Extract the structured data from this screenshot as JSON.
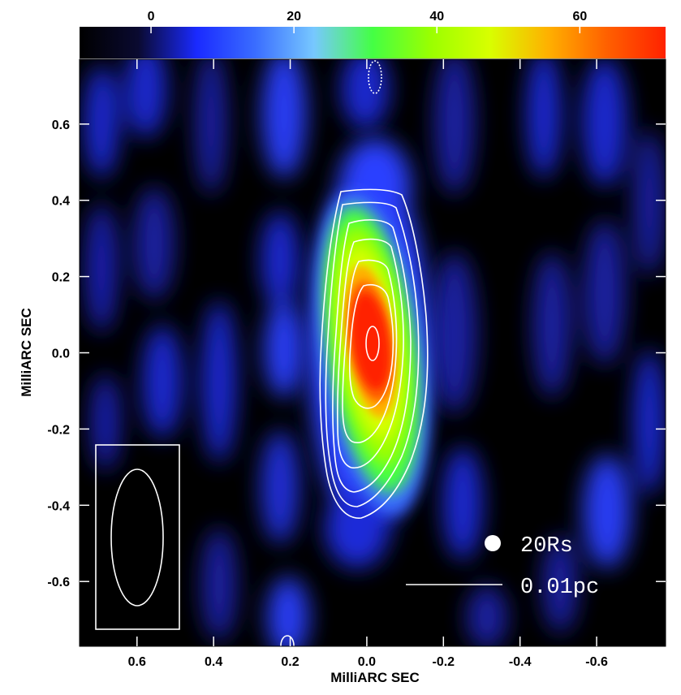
{
  "colorbar": {
    "ticks": [
      {
        "value": 0,
        "label": "0"
      },
      {
        "value": 20,
        "label": "20"
      },
      {
        "value": 40,
        "label": "40"
      },
      {
        "value": 60,
        "label": "60"
      }
    ],
    "range": [
      -10,
      72
    ],
    "stops": [
      "#000000",
      "#0a0a30",
      "#1a2aff",
      "#3a6dff",
      "#77c8ff",
      "#44ff44",
      "#9bff00",
      "#d8ff00",
      "#ffb000",
      "#ff6000",
      "#ff2200"
    ]
  },
  "axes": {
    "xlabel": "MilliARC SEC",
    "ylabel": "MilliARC SEC",
    "xlim": [
      0.75,
      -0.78
    ],
    "ylim": [
      -0.77,
      0.77
    ],
    "xticks": [
      {
        "value": 0.6,
        "label": "0.6"
      },
      {
        "value": 0.4,
        "label": "0.4"
      },
      {
        "value": 0.2,
        "label": "0.2"
      },
      {
        "value": 0.0,
        "label": "0.0"
      },
      {
        "value": -0.2,
        "label": "-0.2"
      },
      {
        "value": -0.4,
        "label": "-0.4"
      },
      {
        "value": -0.6,
        "label": "-0.6"
      }
    ],
    "yticks": [
      {
        "value": 0.6,
        "label": "0.6"
      },
      {
        "value": 0.4,
        "label": "0.4"
      },
      {
        "value": 0.2,
        "label": "0.2"
      },
      {
        "value": 0.0,
        "label": "0.0"
      },
      {
        "value": -0.2,
        "label": "-0.2"
      },
      {
        "value": -0.4,
        "label": "-0.4"
      },
      {
        "value": -0.6,
        "label": "-0.6"
      }
    ]
  },
  "legend": {
    "marker_label": "20Rs",
    "scalebar_label": "0.01pc"
  },
  "colors": {
    "background": "#000000",
    "contour": "#ffffff",
    "peak": "#ff2200"
  }
}
